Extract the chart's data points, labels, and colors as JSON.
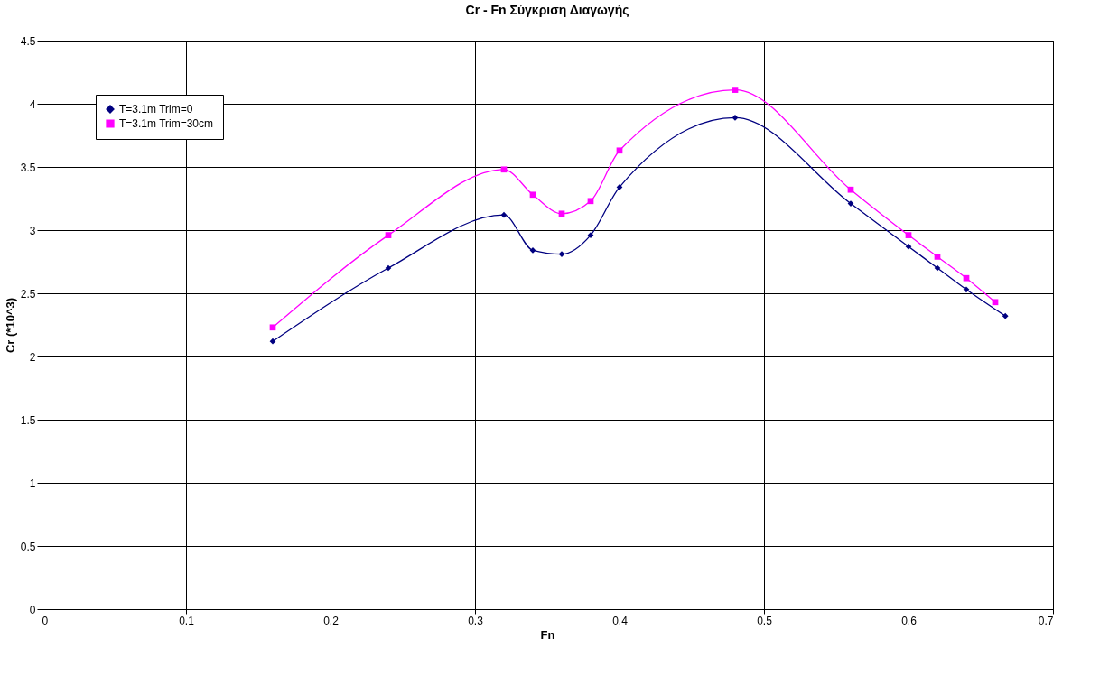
{
  "chart_data": {
    "type": "line",
    "title": "Cr - Fn Σύγκριση Διαγωγής",
    "xlabel": "Fn",
    "ylabel": "Cr (*10^3)",
    "xlim": [
      0,
      0.7
    ],
    "xticks": [
      0,
      0.1,
      0.2,
      0.3,
      0.4,
      0.5,
      0.6,
      0.7
    ],
    "ylim": [
      0,
      4.5
    ],
    "yticks": [
      0,
      0.5,
      1,
      1.5,
      2,
      2.5,
      3,
      3.5,
      4,
      4.5
    ],
    "grid": true,
    "legend": "top left",
    "series": [
      {
        "name": "T=3.1m Trim=0",
        "color": "#000080",
        "marker": "diamond",
        "x": [
          0.16,
          0.24,
          0.32,
          0.34,
          0.36,
          0.38,
          0.4,
          0.48,
          0.56,
          0.6,
          0.62,
          0.64,
          0.667
        ],
        "values": [
          2.12,
          2.7,
          3.12,
          2.84,
          2.81,
          2.96,
          3.34,
          3.89,
          3.21,
          2.87,
          2.7,
          2.53,
          2.32
        ]
      },
      {
        "name": "T=3.1m Trim=30cm",
        "color": "#ff00ff",
        "marker": "square",
        "x": [
          0.16,
          0.24,
          0.32,
          0.34,
          0.36,
          0.38,
          0.4,
          0.48,
          0.56,
          0.6,
          0.62,
          0.64,
          0.66
        ],
        "values": [
          2.23,
          2.96,
          3.48,
          3.28,
          3.13,
          3.23,
          3.63,
          4.11,
          3.32,
          2.96,
          2.79,
          2.62,
          2.43
        ]
      }
    ]
  }
}
